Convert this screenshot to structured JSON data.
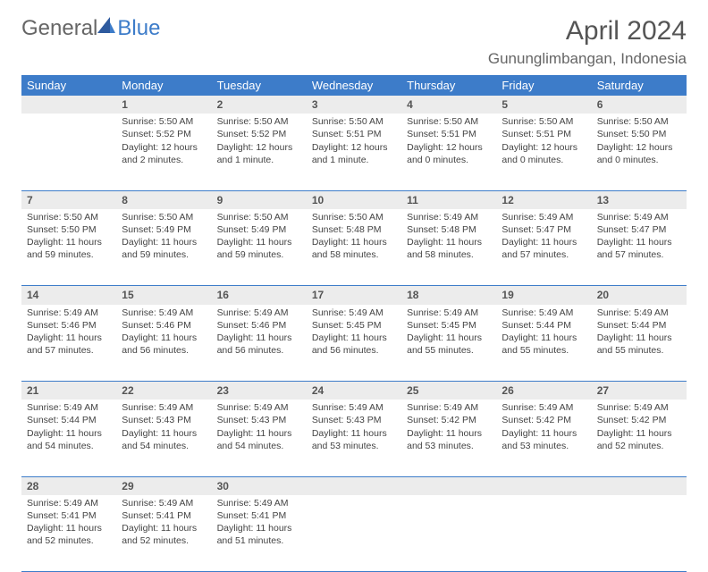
{
  "logo": {
    "text1": "General",
    "text2": "Blue"
  },
  "title": "April 2024",
  "location": "Gununglimbangan, Indonesia",
  "colors": {
    "header_bg": "#3d7cc9",
    "header_text": "#ffffff",
    "daynum_bg": "#ececec",
    "border": "#3d7cc9",
    "logo_blue": "#3d7cc9",
    "text": "#444444"
  },
  "daysOfWeek": [
    "Sunday",
    "Monday",
    "Tuesday",
    "Wednesday",
    "Thursday",
    "Friday",
    "Saturday"
  ],
  "weeks": [
    [
      null,
      {
        "n": "1",
        "sr": "Sunrise: 5:50 AM",
        "ss": "Sunset: 5:52 PM",
        "dl": "Daylight: 12 hours and 2 minutes."
      },
      {
        "n": "2",
        "sr": "Sunrise: 5:50 AM",
        "ss": "Sunset: 5:52 PM",
        "dl": "Daylight: 12 hours and 1 minute."
      },
      {
        "n": "3",
        "sr": "Sunrise: 5:50 AM",
        "ss": "Sunset: 5:51 PM",
        "dl": "Daylight: 12 hours and 1 minute."
      },
      {
        "n": "4",
        "sr": "Sunrise: 5:50 AM",
        "ss": "Sunset: 5:51 PM",
        "dl": "Daylight: 12 hours and 0 minutes."
      },
      {
        "n": "5",
        "sr": "Sunrise: 5:50 AM",
        "ss": "Sunset: 5:51 PM",
        "dl": "Daylight: 12 hours and 0 minutes."
      },
      {
        "n": "6",
        "sr": "Sunrise: 5:50 AM",
        "ss": "Sunset: 5:50 PM",
        "dl": "Daylight: 12 hours and 0 minutes."
      }
    ],
    [
      {
        "n": "7",
        "sr": "Sunrise: 5:50 AM",
        "ss": "Sunset: 5:50 PM",
        "dl": "Daylight: 11 hours and 59 minutes."
      },
      {
        "n": "8",
        "sr": "Sunrise: 5:50 AM",
        "ss": "Sunset: 5:49 PM",
        "dl": "Daylight: 11 hours and 59 minutes."
      },
      {
        "n": "9",
        "sr": "Sunrise: 5:50 AM",
        "ss": "Sunset: 5:49 PM",
        "dl": "Daylight: 11 hours and 59 minutes."
      },
      {
        "n": "10",
        "sr": "Sunrise: 5:50 AM",
        "ss": "Sunset: 5:48 PM",
        "dl": "Daylight: 11 hours and 58 minutes."
      },
      {
        "n": "11",
        "sr": "Sunrise: 5:49 AM",
        "ss": "Sunset: 5:48 PM",
        "dl": "Daylight: 11 hours and 58 minutes."
      },
      {
        "n": "12",
        "sr": "Sunrise: 5:49 AM",
        "ss": "Sunset: 5:47 PM",
        "dl": "Daylight: 11 hours and 57 minutes."
      },
      {
        "n": "13",
        "sr": "Sunrise: 5:49 AM",
        "ss": "Sunset: 5:47 PM",
        "dl": "Daylight: 11 hours and 57 minutes."
      }
    ],
    [
      {
        "n": "14",
        "sr": "Sunrise: 5:49 AM",
        "ss": "Sunset: 5:46 PM",
        "dl": "Daylight: 11 hours and 57 minutes."
      },
      {
        "n": "15",
        "sr": "Sunrise: 5:49 AM",
        "ss": "Sunset: 5:46 PM",
        "dl": "Daylight: 11 hours and 56 minutes."
      },
      {
        "n": "16",
        "sr": "Sunrise: 5:49 AM",
        "ss": "Sunset: 5:46 PM",
        "dl": "Daylight: 11 hours and 56 minutes."
      },
      {
        "n": "17",
        "sr": "Sunrise: 5:49 AM",
        "ss": "Sunset: 5:45 PM",
        "dl": "Daylight: 11 hours and 56 minutes."
      },
      {
        "n": "18",
        "sr": "Sunrise: 5:49 AM",
        "ss": "Sunset: 5:45 PM",
        "dl": "Daylight: 11 hours and 55 minutes."
      },
      {
        "n": "19",
        "sr": "Sunrise: 5:49 AM",
        "ss": "Sunset: 5:44 PM",
        "dl": "Daylight: 11 hours and 55 minutes."
      },
      {
        "n": "20",
        "sr": "Sunrise: 5:49 AM",
        "ss": "Sunset: 5:44 PM",
        "dl": "Daylight: 11 hours and 55 minutes."
      }
    ],
    [
      {
        "n": "21",
        "sr": "Sunrise: 5:49 AM",
        "ss": "Sunset: 5:44 PM",
        "dl": "Daylight: 11 hours and 54 minutes."
      },
      {
        "n": "22",
        "sr": "Sunrise: 5:49 AM",
        "ss": "Sunset: 5:43 PM",
        "dl": "Daylight: 11 hours and 54 minutes."
      },
      {
        "n": "23",
        "sr": "Sunrise: 5:49 AM",
        "ss": "Sunset: 5:43 PM",
        "dl": "Daylight: 11 hours and 54 minutes."
      },
      {
        "n": "24",
        "sr": "Sunrise: 5:49 AM",
        "ss": "Sunset: 5:43 PM",
        "dl": "Daylight: 11 hours and 53 minutes."
      },
      {
        "n": "25",
        "sr": "Sunrise: 5:49 AM",
        "ss": "Sunset: 5:42 PM",
        "dl": "Daylight: 11 hours and 53 minutes."
      },
      {
        "n": "26",
        "sr": "Sunrise: 5:49 AM",
        "ss": "Sunset: 5:42 PM",
        "dl": "Daylight: 11 hours and 53 minutes."
      },
      {
        "n": "27",
        "sr": "Sunrise: 5:49 AM",
        "ss": "Sunset: 5:42 PM",
        "dl": "Daylight: 11 hours and 52 minutes."
      }
    ],
    [
      {
        "n": "28",
        "sr": "Sunrise: 5:49 AM",
        "ss": "Sunset: 5:41 PM",
        "dl": "Daylight: 11 hours and 52 minutes."
      },
      {
        "n": "29",
        "sr": "Sunrise: 5:49 AM",
        "ss": "Sunset: 5:41 PM",
        "dl": "Daylight: 11 hours and 52 minutes."
      },
      {
        "n": "30",
        "sr": "Sunrise: 5:49 AM",
        "ss": "Sunset: 5:41 PM",
        "dl": "Daylight: 11 hours and 51 minutes."
      },
      null,
      null,
      null,
      null
    ]
  ]
}
